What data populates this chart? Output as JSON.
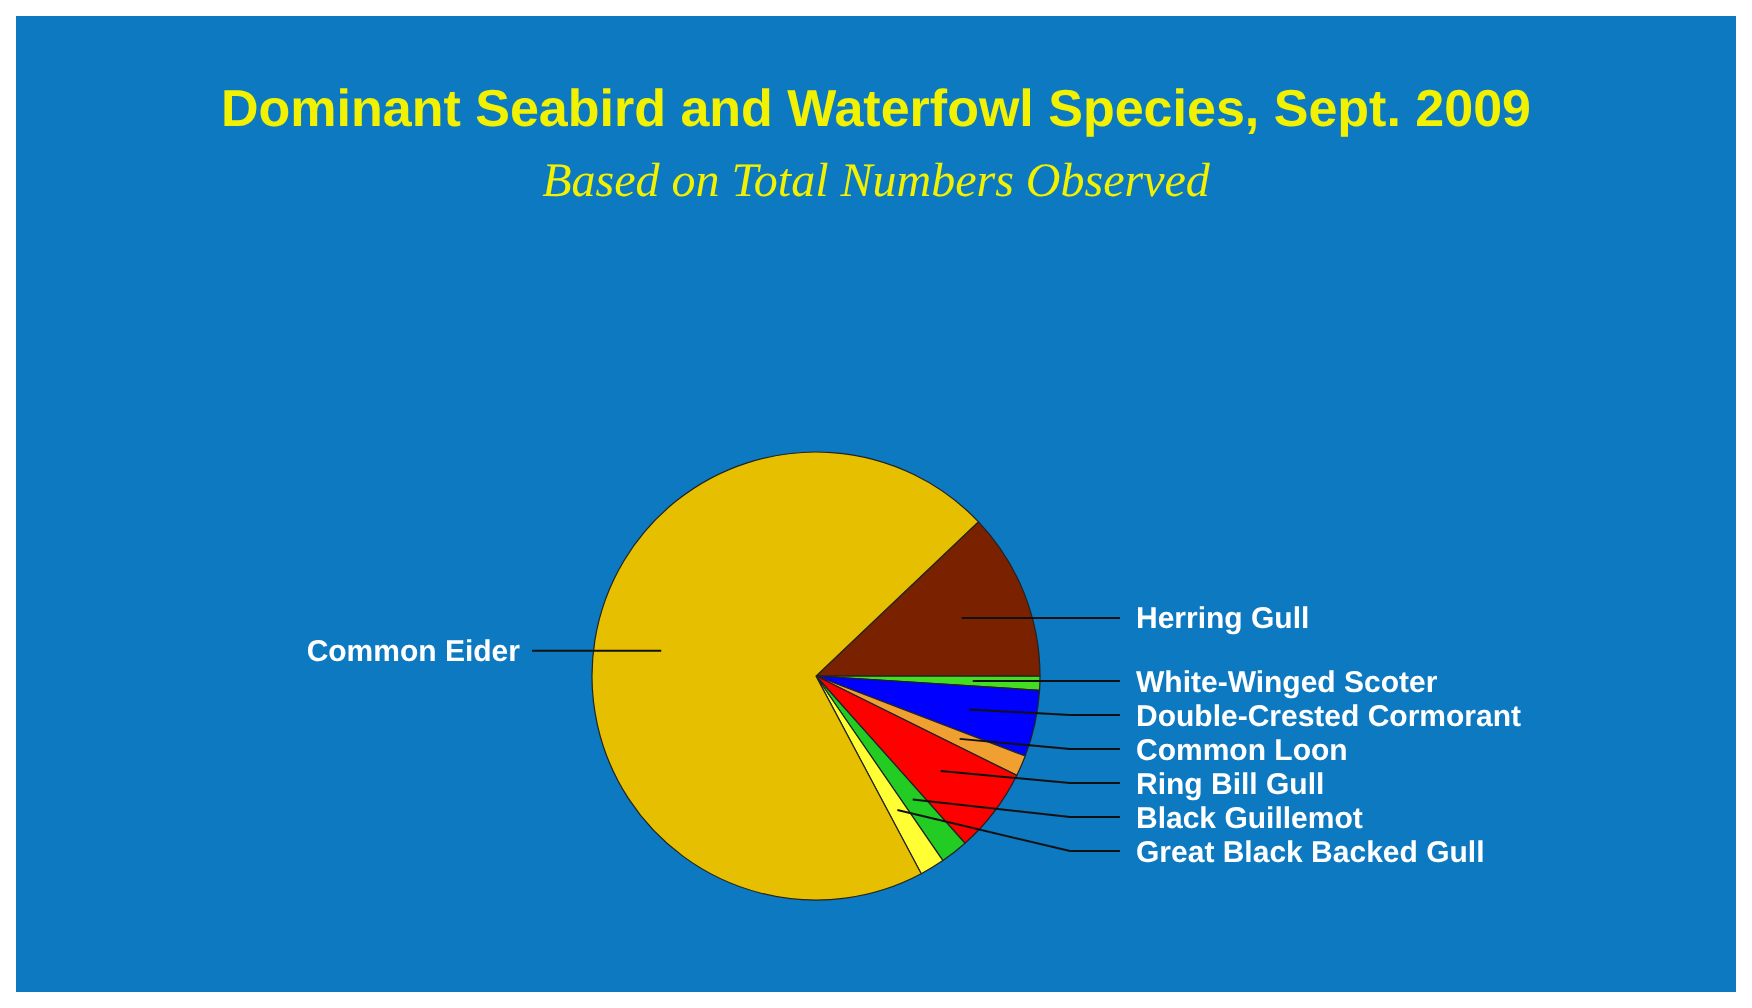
{
  "chart_data": {
    "type": "pie",
    "title": "Dominant Seabird and Waterfowl Species, Sept. 2009",
    "subtitle": "Based on Total Numbers Observed",
    "categories": [
      "Herring Gull",
      "White-Winged Scoter",
      "Double-Crested Cormorant",
      "Common Loon",
      "Ring Bill Gull",
      "Black Guillemot",
      "Great Black Backed Gull",
      "Common Eider"
    ],
    "values": [
      12.1,
      1.0,
      4.8,
      1.5,
      6.1,
      2.0,
      1.8,
      70.7
    ],
    "colors": [
      "#7a2200",
      "#44dd22",
      "#0000ff",
      "#f0a030",
      "#ff0000",
      "#22cc22",
      "#ffff33",
      "#e6c000"
    ]
  }
}
